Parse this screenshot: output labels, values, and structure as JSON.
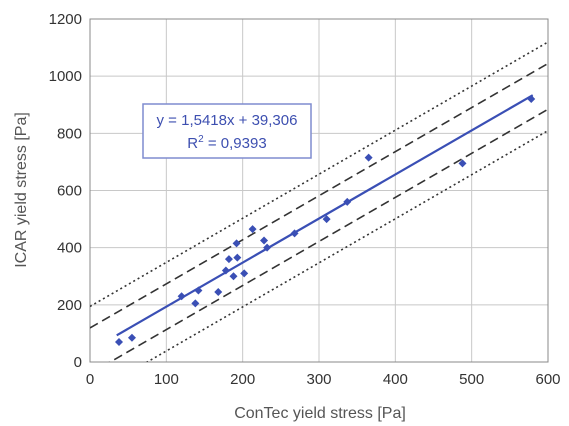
{
  "chart_data": {
    "type": "scatter",
    "xlabel": "ConTec yield stress  [Pa]",
    "ylabel": "ICAR yield stress  [Pa]",
    "xlim": [
      0,
      600
    ],
    "ylim": [
      0,
      1200
    ],
    "xticks": [
      0,
      100,
      200,
      300,
      400,
      500,
      600
    ],
    "yticks": [
      0,
      200,
      400,
      600,
      800,
      1000,
      1200
    ],
    "grid": true,
    "points": [
      {
        "x": 38,
        "y": 70
      },
      {
        "x": 55,
        "y": 85
      },
      {
        "x": 120,
        "y": 230
      },
      {
        "x": 138,
        "y": 205
      },
      {
        "x": 142,
        "y": 250
      },
      {
        "x": 168,
        "y": 245
      },
      {
        "x": 178,
        "y": 320
      },
      {
        "x": 182,
        "y": 360
      },
      {
        "x": 188,
        "y": 300
      },
      {
        "x": 193,
        "y": 365
      },
      {
        "x": 192,
        "y": 415
      },
      {
        "x": 202,
        "y": 310
      },
      {
        "x": 213,
        "y": 465
      },
      {
        "x": 228,
        "y": 425
      },
      {
        "x": 232,
        "y": 400
      },
      {
        "x": 268,
        "y": 450
      },
      {
        "x": 310,
        "y": 500
      },
      {
        "x": 337,
        "y": 560
      },
      {
        "x": 365,
        "y": 715
      },
      {
        "x": 488,
        "y": 695
      },
      {
        "x": 578,
        "y": 920
      }
    ],
    "regression": {
      "slope": 1.5418,
      "intercept": 39.306,
      "x_range": [
        35,
        580
      ]
    },
    "confidence_band": {
      "offset": 80
    },
    "prediction_band": {
      "offset": 155
    },
    "equation_line1": "y = 1,5418x + 39,306",
    "equation_r2_prefix": "R",
    "equation_r2_sup": "2",
    "equation_r2_suffix": " = 0,9393",
    "colors": {
      "points": "#3a4fb5",
      "fit": "#3a4fb5",
      "bands": "#333333",
      "grid": "#c8c8c8",
      "box_border": "#7f8ccf"
    }
  }
}
